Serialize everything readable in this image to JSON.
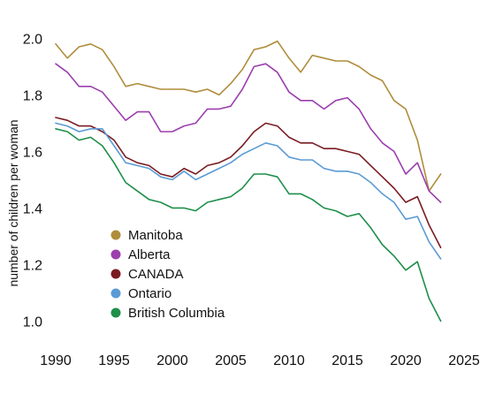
{
  "chart_data": {
    "type": "line",
    "title": "",
    "xlabel": "",
    "ylabel": "number of children per woman",
    "xlim": [
      1990,
      2025
    ],
    "ylim": [
      0.97,
      2.02
    ],
    "xticks": [
      1990,
      1995,
      2000,
      2005,
      2010,
      2015,
      2020,
      2025
    ],
    "yticks": [
      1.0,
      1.2,
      1.4,
      1.6,
      1.8,
      2.0
    ],
    "ytick_labels": [
      "1.0",
      "1.2",
      "1.4",
      "1.6",
      "1.8",
      "2.0"
    ],
    "grid": false,
    "legend_position": "lower-left",
    "x": [
      1990,
      1991,
      1992,
      1993,
      1994,
      1995,
      1996,
      1997,
      1998,
      1999,
      2000,
      2001,
      2002,
      2003,
      2004,
      2005,
      2006,
      2007,
      2008,
      2009,
      2010,
      2011,
      2012,
      2013,
      2014,
      2015,
      2016,
      2017,
      2018,
      2019,
      2020,
      2021,
      2022,
      2023
    ],
    "series": [
      {
        "name": "Manitoba",
        "color": "#b08d3c",
        "values": [
          1.98,
          1.93,
          1.97,
          1.98,
          1.96,
          1.9,
          1.83,
          1.84,
          1.83,
          1.82,
          1.82,
          1.82,
          1.81,
          1.82,
          1.8,
          1.84,
          1.89,
          1.96,
          1.97,
          1.99,
          1.93,
          1.88,
          1.94,
          1.93,
          1.92,
          1.92,
          1.9,
          1.87,
          1.85,
          1.78,
          1.75,
          1.64,
          1.46,
          1.52
        ]
      },
      {
        "name": "Alberta",
        "color": "#9b3fae",
        "values": [
          1.91,
          1.88,
          1.83,
          1.83,
          1.81,
          1.76,
          1.71,
          1.74,
          1.74,
          1.67,
          1.67,
          1.69,
          1.7,
          1.75,
          1.75,
          1.76,
          1.82,
          1.9,
          1.91,
          1.88,
          1.81,
          1.78,
          1.78,
          1.75,
          1.78,
          1.79,
          1.75,
          1.68,
          1.63,
          1.6,
          1.52,
          1.56,
          1.46,
          1.42
        ]
      },
      {
        "name": "CANADA",
        "color": "#7a1c22",
        "values": [
          1.72,
          1.71,
          1.69,
          1.69,
          1.67,
          1.64,
          1.58,
          1.56,
          1.55,
          1.52,
          1.51,
          1.54,
          1.52,
          1.55,
          1.56,
          1.58,
          1.62,
          1.67,
          1.7,
          1.69,
          1.65,
          1.63,
          1.63,
          1.61,
          1.61,
          1.6,
          1.59,
          1.55,
          1.51,
          1.47,
          1.42,
          1.44,
          1.34,
          1.26
        ]
      },
      {
        "name": "Ontario",
        "color": "#5b9bd5",
        "values": [
          1.7,
          1.69,
          1.67,
          1.68,
          1.68,
          1.62,
          1.56,
          1.55,
          1.54,
          1.51,
          1.5,
          1.53,
          1.5,
          1.52,
          1.54,
          1.56,
          1.59,
          1.61,
          1.63,
          1.62,
          1.58,
          1.57,
          1.57,
          1.54,
          1.53,
          1.53,
          1.52,
          1.49,
          1.45,
          1.42,
          1.36,
          1.37,
          1.28,
          1.22
        ]
      },
      {
        "name": "British Columbia",
        "color": "#1f8f4a",
        "values": [
          1.68,
          1.67,
          1.64,
          1.65,
          1.62,
          1.56,
          1.49,
          1.46,
          1.43,
          1.42,
          1.4,
          1.4,
          1.39,
          1.42,
          1.43,
          1.44,
          1.47,
          1.52,
          1.52,
          1.51,
          1.45,
          1.45,
          1.43,
          1.4,
          1.39,
          1.37,
          1.38,
          1.33,
          1.27,
          1.23,
          1.18,
          1.21,
          1.08,
          1.0
        ]
      }
    ]
  }
}
